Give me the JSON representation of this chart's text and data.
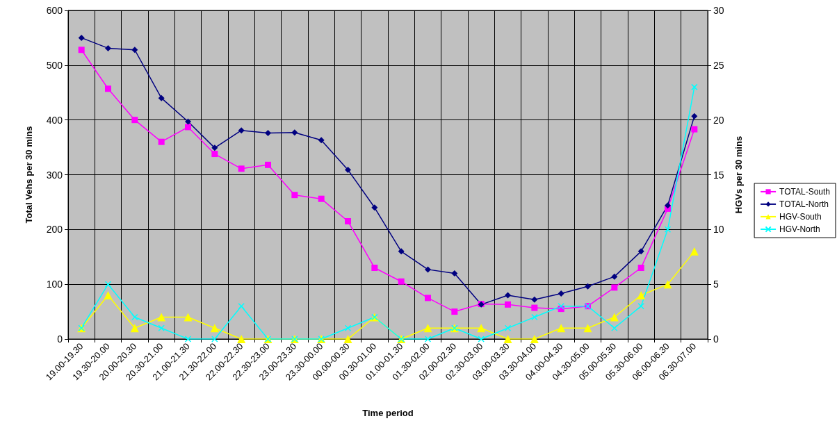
{
  "chart_data": {
    "type": "line",
    "xlabel": "Time period",
    "ylabel": "Total Vehs per 30 mins",
    "y2label": "HGVs per 30 mins",
    "categories": [
      "19.00-19.30",
      "19.30-20.00",
      "20.00-20.30",
      "20.30-21.00",
      "21.00-21.30",
      "21.30-22.00",
      "22.00-22.30",
      "22.30-23.00",
      "23.00-23.30",
      "23.30-00.00",
      "00.00-00.30",
      "00.30-01.00",
      "01.00-01.30",
      "01.30-02.00",
      "02.00-02.30",
      "02.30-03.00",
      "03.00-03.30",
      "03.30-04.00",
      "04.00-04.30",
      "04.30-05.00",
      "05.00-05.30",
      "05.30-06.00",
      "06.00-06.30",
      "06.30-07.00"
    ],
    "series": [
      {
        "name": "TOTAL-South",
        "color": "#ff00ff",
        "marker": "square",
        "values": [
          528,
          457,
          400,
          360,
          387,
          338,
          311,
          318,
          263,
          256,
          215,
          130,
          105,
          75,
          50,
          64,
          63,
          57,
          55,
          60,
          94,
          130,
          238,
          383
        ]
      },
      {
        "name": "TOTAL-North",
        "color": "#000080",
        "marker": "diamond",
        "values": [
          550,
          531,
          528,
          440,
          397,
          349,
          381,
          376,
          377,
          363,
          309,
          240,
          160,
          127,
          120,
          63,
          80,
          72,
          83,
          96,
          114,
          160,
          244,
          407
        ]
      },
      {
        "name": "HGV-South",
        "color": "#ffff00",
        "marker": "triangle",
        "axis": "y2",
        "values": [
          1,
          4,
          1,
          2,
          2,
          1,
          0,
          0,
          0,
          0,
          0,
          2,
          0,
          1,
          1,
          1,
          0,
          0,
          1,
          1,
          2,
          4,
          5,
          8
        ]
      },
      {
        "name": "HGV-North",
        "color": "#00ffff",
        "marker": "cross",
        "axis": "y2",
        "values": [
          1,
          5,
          2,
          1,
          0,
          0,
          3,
          0,
          0,
          0,
          1,
          2,
          0,
          0,
          1,
          0,
          1,
          2,
          3,
          3,
          1,
          3,
          10,
          23
        ]
      }
    ],
    "ylim": [
      0,
      600
    ],
    "yticks": [
      0,
      100,
      200,
      300,
      400,
      500,
      600
    ],
    "y2lim": [
      0,
      30
    ],
    "y2ticks": [
      0,
      5,
      10,
      15,
      20,
      25,
      30
    ],
    "grid": true,
    "legend": "right"
  }
}
